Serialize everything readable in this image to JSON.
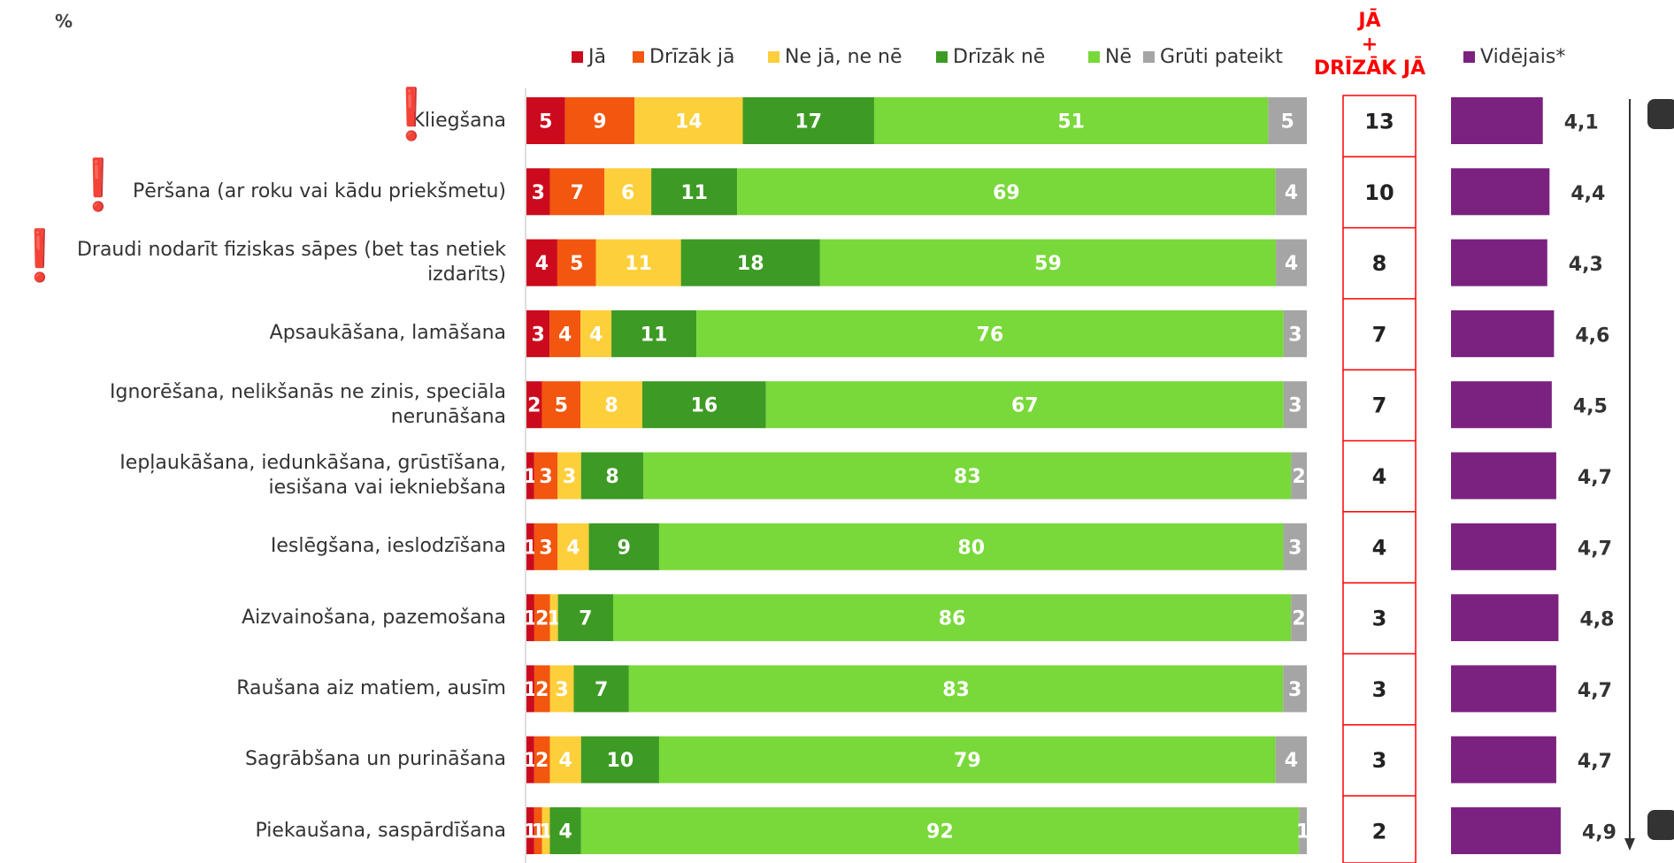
{
  "unit_label": "%",
  "legend": {
    "items": [
      {
        "label": "Jā",
        "color": "#cc0a1d"
      },
      {
        "label": "Drīzāk jā",
        "color": "#f2560f"
      },
      {
        "label": "Ne jā, ne nē",
        "color": "#fdcf3a"
      },
      {
        "label": "Drīzāk nē",
        "color": "#3d9a24"
      },
      {
        "label": "Nē",
        "color": "#79d83a"
      },
      {
        "label": "Grūti pateikt",
        "color": "#a5a5a5"
      }
    ],
    "total_header": [
      "JĀ",
      "+",
      "DRĪZĀK JĀ"
    ],
    "mean_label": "Vidējais*",
    "mean_color": "#7b2280",
    "total_color": "#ff0000"
  },
  "chart_data": {
    "type": "bar",
    "orientation": "horizontal",
    "stacked": true,
    "unit": "%",
    "categories": [
      "Kliegšana",
      "Pēršana (ar roku vai kādu priekšmetu)",
      "Draudi nodarīt fiziskas sāpes (bet tas netiek izdarīts)",
      "Apsaukāšana, lamāšana",
      "Ignorēšana, nelikšanās ne zinis, speciāla nerunāšana",
      "Iepļaukāšana, iedunkāšana, grūstīšana, iesišana vai iekniebšana",
      "Ieslēgšana, ieslodzīšana",
      "Aizvainošana, pazemošana",
      "Raušana aiz matiem, ausīm",
      "Sagrābšana un purināšana",
      "Piekaušana, saspārdīšana"
    ],
    "label_lines": [
      [
        "Kliegšana"
      ],
      [
        "Pēršana (ar roku vai kādu priekšmetu)"
      ],
      [
        "Draudi nodarīt fiziskas sāpes (bet tas netiek",
        "izdarīts)"
      ],
      [
        "Apsaukāšana, lamāšana"
      ],
      [
        "Ignorēšana, nelikšanās ne zinis, speciāla",
        "nerunāšana"
      ],
      [
        "Iepļaukāšana, iedunkāšana, grūstīšana,",
        "iesišana vai iekniebšana"
      ],
      [
        "Ieslēgšana, ieslodzīšana"
      ],
      [
        "Aizvainošana, pazemošana"
      ],
      [
        "Raušana aiz matiem, ausīm"
      ],
      [
        "Sagrābšana un purināšana"
      ],
      [
        "Piekaušana, saspārdīšana"
      ]
    ],
    "flagged": [
      true,
      true,
      true,
      false,
      false,
      false,
      false,
      false,
      false,
      false,
      false
    ],
    "series": [
      {
        "name": "Jā",
        "color": "#cc0a1d",
        "values": [
          5,
          3,
          4,
          3,
          2,
          1,
          1,
          1,
          1,
          1,
          1
        ]
      },
      {
        "name": "Drīzāk jā",
        "color": "#f2560f",
        "values": [
          9,
          7,
          5,
          4,
          5,
          3,
          3,
          2,
          2,
          2,
          1
        ]
      },
      {
        "name": "Ne jā, ne nē",
        "color": "#fdcf3a",
        "values": [
          14,
          6,
          11,
          4,
          8,
          3,
          4,
          1,
          3,
          4,
          1
        ]
      },
      {
        "name": "Drīzāk nē",
        "color": "#3d9a24",
        "values": [
          17,
          11,
          18,
          11,
          16,
          8,
          9,
          7,
          7,
          10,
          4
        ]
      },
      {
        "name": "Nē",
        "color": "#79d83a",
        "values": [
          51,
          69,
          59,
          76,
          67,
          83,
          80,
          86,
          83,
          79,
          92
        ]
      },
      {
        "name": "Grūti pateikt",
        "color": "#a5a5a5",
        "values": [
          5,
          4,
          4,
          3,
          3,
          2,
          3,
          2,
          3,
          4,
          1
        ]
      }
    ],
    "ja_plus_drizak_ja": [
      13,
      10,
      8,
      7,
      7,
      4,
      4,
      3,
      3,
      3,
      2
    ],
    "mean": {
      "name": "Vidējais*",
      "values": [
        "4,1",
        "4,4",
        "4,3",
        "4,6",
        "4,5",
        "4,7",
        "4,7",
        "4,8",
        "4,7",
        "4,7",
        "4,9"
      ],
      "numeric": [
        4.1,
        4.4,
        4.3,
        4.6,
        4.5,
        4.7,
        4.7,
        4.8,
        4.7,
        4.7,
        4.9
      ]
    },
    "xlim": [
      0,
      100
    ]
  }
}
